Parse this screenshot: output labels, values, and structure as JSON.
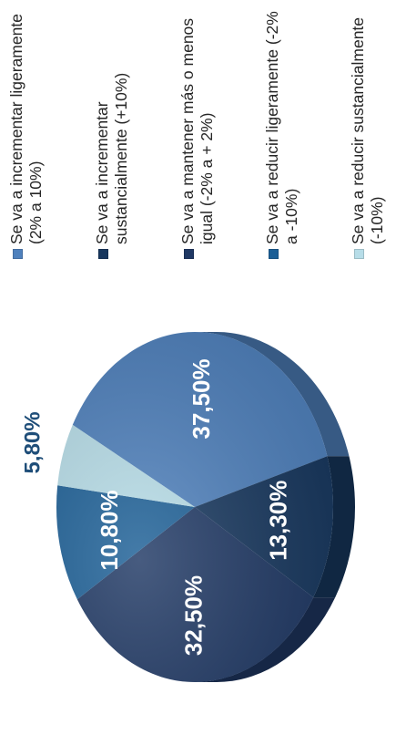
{
  "chart_data": {
    "type": "pie",
    "title": "",
    "categories": [
      "Se va a incrementar ligeramente (2% a 10%)",
      "Se va a incrementar sustancialmente (+10%)",
      "Se va a mantener más o menos igual (-2% a + 2%)",
      "Se va a reducir ligeramente (-2% a -10%)",
      "Se va a reducir sustancialmente (-10%)"
    ],
    "values": [
      37.5,
      13.3,
      32.5,
      10.8,
      5.8
    ],
    "value_labels": [
      "37,50%",
      "13,30%",
      "32,50%",
      "10,80%",
      "5,80%"
    ],
    "colors": [
      "#4f81bd",
      "#17375e",
      "#1f3864",
      "#1c5f96",
      "#b7dde8"
    ],
    "legend": {
      "placement": "right"
    }
  },
  "legend": {
    "items": [
      {
        "label": "Se va a incrementar ligeramente (2% a 10%)",
        "color": "#4f81bd"
      },
      {
        "label": "Se va a incrementar sustancialmente (+10%)",
        "color": "#17375e"
      },
      {
        "label": "Se va a mantener más o menos igual (-2% a + 2%)",
        "color": "#1f3864"
      },
      {
        "label": "Se va a reducir ligeramente (-2% a -10%)",
        "color": "#1c5f96"
      },
      {
        "label": "Se va a reducir sustancialmente (-10%)",
        "color": "#b7dde8"
      }
    ]
  }
}
